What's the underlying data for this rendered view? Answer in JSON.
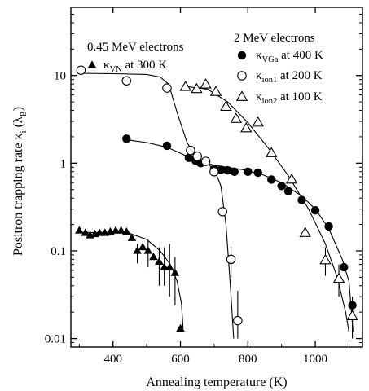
{
  "chart_data": {
    "type": "scatter",
    "title": "",
    "xlabel": "Annealing temperature (K)",
    "ylabel_parts": [
      "Positron trapping rate κ",
      "i",
      " (λ",
      "B",
      ")"
    ],
    "xlim": [
      275,
      1140
    ],
    "ylim": [
      0.008,
      60
    ],
    "yscale": "log",
    "x_ticks": [
      400,
      600,
      800,
      1000
    ],
    "x_tick_labels": [
      "400",
      "600",
      "800",
      "1000"
    ],
    "y_ticks": [
      0.01,
      0.1,
      1,
      10
    ],
    "y_tick_labels": [
      "0.01",
      "0.1",
      "1",
      "10"
    ],
    "group_labels": [
      "0.45 MeV electrons",
      "2 MeV electrons"
    ],
    "series": [
      {
        "name_main": "κ",
        "name_sub": "VN",
        "name_rest": " at 300 K",
        "marker": "triangle-filled",
        "points": [
          [
            300,
            0.17
          ],
          [
            318,
            0.16
          ],
          [
            332,
            0.15
          ],
          [
            346,
            0.155
          ],
          [
            360,
            0.16
          ],
          [
            376,
            0.16
          ],
          [
            392,
            0.165
          ],
          [
            408,
            0.17
          ],
          [
            424,
            0.17
          ],
          [
            440,
            0.165
          ],
          [
            456,
            0.14
          ],
          [
            472,
            0.1
          ],
          [
            488,
            0.11
          ],
          [
            504,
            0.1
          ],
          [
            520,
            0.085
          ],
          [
            537,
            0.075
          ],
          [
            552,
            0.065
          ],
          [
            568,
            0.065
          ],
          [
            584,
            0.056
          ],
          [
            600,
            0.013
          ]
        ],
        "error_bars": [
          [
            472,
            0.072,
            0.12
          ],
          [
            504,
            0.065,
            0.13
          ],
          [
            537,
            0.04,
            0.11
          ],
          [
            552,
            0.04,
            0.11
          ],
          [
            568,
            0.03,
            0.12
          ],
          [
            584,
            0.024,
            0.085
          ]
        ],
        "fit": [
          [
            300,
            0.162
          ],
          [
            400,
            0.162
          ],
          [
            450,
            0.158
          ],
          [
            500,
            0.135
          ],
          [
            540,
            0.1
          ],
          [
            570,
            0.07
          ],
          [
            590,
            0.045
          ],
          [
            603,
            0.025
          ],
          [
            608,
            0.013
          ]
        ]
      },
      {
        "name_main": "κ",
        "name_sub": "VGa",
        "name_rest": " at 400 K",
        "marker": "circle-filled",
        "points": [
          [
            440,
            1.9
          ],
          [
            560,
            1.58
          ],
          [
            625,
            1.15
          ],
          [
            645,
            1.07
          ],
          [
            660,
            1.0
          ],
          [
            700,
            0.86
          ],
          [
            720,
            0.84
          ],
          [
            740,
            0.83
          ],
          [
            760,
            0.8
          ],
          [
            800,
            0.8
          ],
          [
            830,
            0.78
          ],
          [
            870,
            0.65
          ],
          [
            900,
            0.55
          ],
          [
            920,
            0.48
          ],
          [
            960,
            0.38
          ],
          [
            1000,
            0.29
          ],
          [
            1040,
            0.19
          ],
          [
            1085,
            0.065
          ],
          [
            1110,
            0.024
          ]
        ],
        "error_bars": [],
        "fit": [
          [
            440,
            1.85
          ],
          [
            500,
            1.72
          ],
          [
            560,
            1.52
          ],
          [
            620,
            1.2
          ],
          [
            660,
            1.02
          ],
          [
            720,
            0.92
          ],
          [
            780,
            0.85
          ],
          [
            840,
            0.75
          ],
          [
            900,
            0.6
          ],
          [
            960,
            0.42
          ],
          [
            1000,
            0.3
          ],
          [
            1040,
            0.18
          ],
          [
            1080,
            0.08
          ],
          [
            1100,
            0.045
          ],
          [
            1112,
            0.012
          ]
        ]
      },
      {
        "name_main": "κ",
        "name_sub": "ion1",
        "name_rest": " at 200 K",
        "marker": "circle-open",
        "points": [
          [
            305,
            11.5
          ],
          [
            440,
            8.7
          ],
          [
            560,
            7.2
          ],
          [
            630,
            1.4
          ],
          [
            650,
            1.2
          ],
          [
            675,
            1.05
          ],
          [
            700,
            0.8
          ],
          [
            725,
            0.28
          ],
          [
            750,
            0.08
          ],
          [
            770,
            0.016
          ]
        ],
        "error_bars": [
          [
            750,
            0.05,
            0.11
          ],
          [
            770,
            0.01,
            0.035
          ]
        ],
        "fit": [
          [
            300,
            10.6
          ],
          [
            400,
            10.5
          ],
          [
            500,
            10.3
          ],
          [
            540,
            9.6
          ],
          [
            565,
            8.0
          ],
          [
            590,
            3.8
          ],
          [
            620,
            1.7
          ],
          [
            650,
            1.15
          ],
          [
            680,
            0.98
          ],
          [
            700,
            0.86
          ],
          [
            720,
            0.55
          ],
          [
            735,
            0.2
          ],
          [
            748,
            0.04
          ],
          [
            758,
            0.01
          ]
        ]
      },
      {
        "name_main": "κ",
        "name_sub": "ion2",
        "name_rest": " at 100 K",
        "marker": "triangle-open",
        "points": [
          [
            615,
            7.4
          ],
          [
            648,
            7.0
          ],
          [
            675,
            7.9
          ],
          [
            705,
            6.5
          ],
          [
            735,
            4.4
          ],
          [
            765,
            3.2
          ],
          [
            795,
            2.5
          ],
          [
            830,
            2.9
          ],
          [
            870,
            1.3
          ],
          [
            930,
            0.65
          ],
          [
            970,
            0.16
          ],
          [
            1030,
            0.078
          ],
          [
            1070,
            0.048
          ],
          [
            1110,
            0.018
          ]
        ],
        "error_bars": [
          [
            1030,
            0.052,
            0.11
          ],
          [
            1070,
            0.03,
            0.07
          ],
          [
            1110,
            0.01,
            0.03
          ]
        ],
        "fit": [
          [
            615,
            7.5
          ],
          [
            680,
            7.0
          ],
          [
            740,
            5.0
          ],
          [
            800,
            2.9
          ],
          [
            860,
            1.5
          ],
          [
            920,
            0.72
          ],
          [
            980,
            0.3
          ],
          [
            1030,
            0.12
          ],
          [
            1065,
            0.05
          ],
          [
            1090,
            0.02
          ],
          [
            1100,
            0.012
          ]
        ]
      }
    ]
  }
}
